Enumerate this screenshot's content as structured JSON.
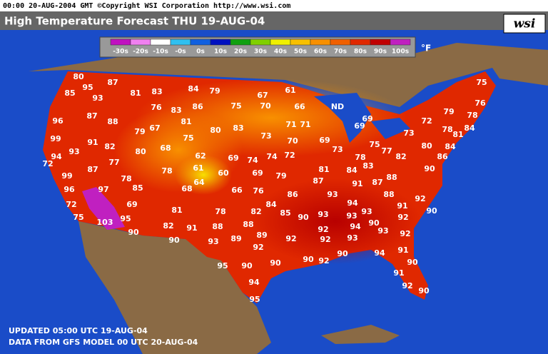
{
  "header": {
    "info": "00:00 20-AUG-2004 GMT ©Copyright WSI Corporation  http://www.wsi.com",
    "title": "High Temperature Forecast  THU 19-AUG-04",
    "logo": "wsi"
  },
  "legend": {
    "items": [
      {
        "label": "-30s",
        "color": "#c010c0"
      },
      {
        "label": "-20s",
        "color": "#f080f0"
      },
      {
        "label": "-10s",
        "color": "#ffffff"
      },
      {
        "label": "-0s",
        "color": "#30c0f0"
      },
      {
        "label": "0s",
        "color": "#1060e0"
      },
      {
        "label": "10s",
        "color": "#0010c0"
      },
      {
        "label": "20s",
        "color": "#10a010"
      },
      {
        "label": "30s",
        "color": "#80d000"
      },
      {
        "label": "40s",
        "color": "#f0f000"
      },
      {
        "label": "50s",
        "color": "#f8c000"
      },
      {
        "label": "60s",
        "color": "#f89000"
      },
      {
        "label": "70s",
        "color": "#f06000"
      },
      {
        "label": "80s",
        "color": "#e02800"
      },
      {
        "label": "90s",
        "color": "#c00000"
      },
      {
        "label": "100s",
        "color": "#c020c0"
      }
    ],
    "unit": "°F"
  },
  "map": {
    "state_label": "ND",
    "temperatures": [
      80,
      95,
      87,
      85,
      93,
      81,
      83,
      84,
      79,
      67,
      61,
      75,
      76,
      76,
      83,
      86,
      75,
      70,
      66,
      79,
      78,
      96,
      87,
      88,
      81,
      69,
      72,
      78,
      84,
      81,
      79,
      67,
      80,
      83,
      71,
      71,
      69,
      73,
      99,
      91,
      82,
      75,
      73,
      70,
      69,
      80,
      84,
      72,
      94,
      93,
      68,
      80,
      73,
      75,
      77,
      82,
      86,
      77,
      62,
      69,
      74,
      74,
      72,
      78,
      87,
      61,
      60,
      69,
      79,
      81,
      84,
      83,
      90,
      99,
      78,
      78,
      64,
      87,
      91,
      87,
      88,
      97,
      96,
      85,
      68,
      66,
      76,
      86,
      93,
      94,
      92,
      88,
      72,
      69,
      84,
      78,
      82,
      85,
      90,
      93,
      93,
      91,
      90,
      81,
      75,
      95,
      103,
      93,
      92,
      82,
      91,
      88,
      88,
      90,
      94,
      93,
      92,
      92,
      90,
      89,
      92,
      92,
      93,
      90,
      93,
      89,
      92,
      91,
      90,
      94,
      90,
      90,
      92,
      95,
      90,
      90,
      91,
      94,
      92,
      90,
      95
    ]
  },
  "footer": {
    "updated": "UPDATED 05:00 UTC 19-AUG-04",
    "source": "DATA FROM GFS MODEL 00 UTC 20-AUG-04"
  }
}
